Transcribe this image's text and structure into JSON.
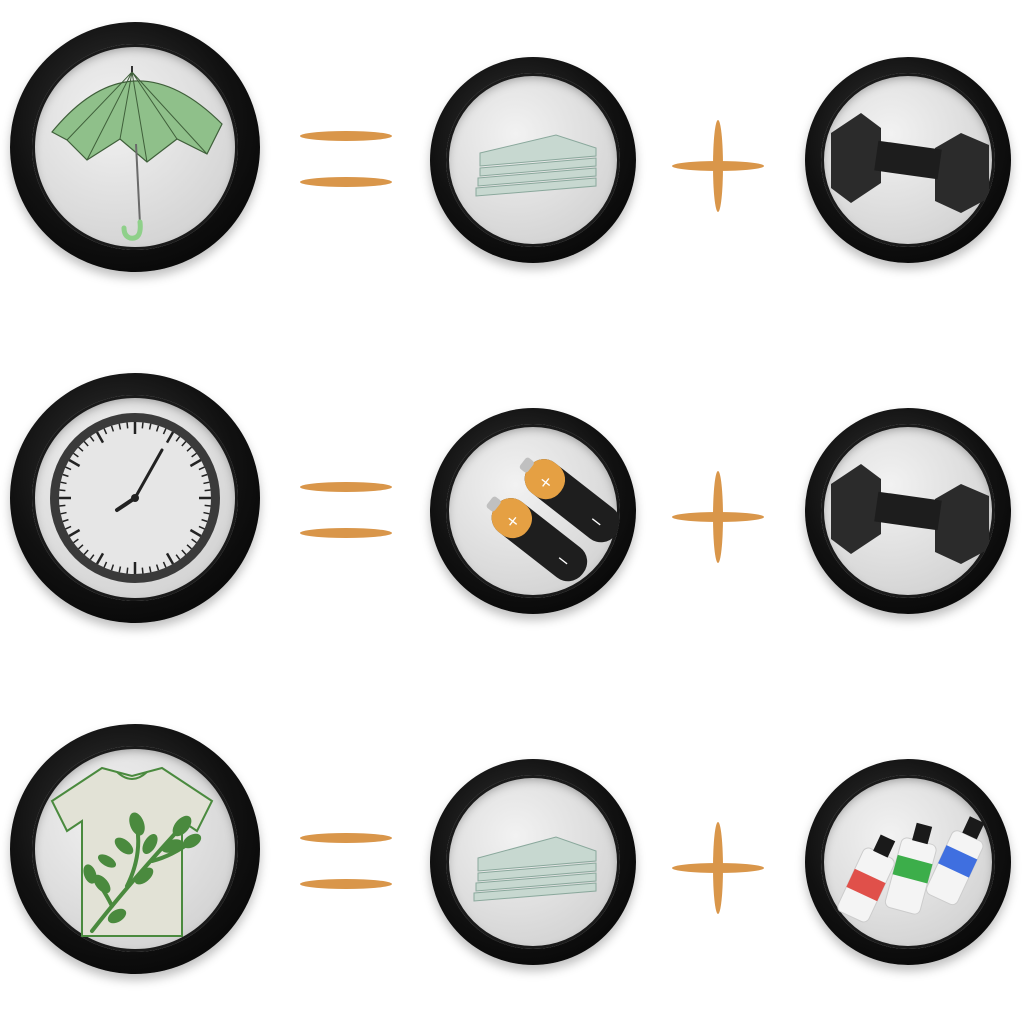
{
  "rows": [
    {
      "left": {
        "icon": "umbrella-icon"
      },
      "operator1": "equals-sign",
      "middle": {
        "icon": "paper-stack-icon"
      },
      "operator2": "plus-sign",
      "right": {
        "icon": "dumbbell-icon"
      }
    },
    {
      "left": {
        "icon": "clock-icon"
      },
      "operator1": "equals-sign",
      "middle": {
        "icon": "batteries-icon"
      },
      "operator2": "plus-sign",
      "right": {
        "icon": "dumbbell-icon"
      }
    },
    {
      "left": {
        "icon": "leaf-tshirt-icon"
      },
      "operator1": "equals-sign",
      "middle": {
        "icon": "paper-stack-icon"
      },
      "operator2": "plus-sign",
      "right": {
        "icon": "paint-tubes-icon"
      }
    }
  ],
  "colors": {
    "operator": "#d9964a",
    "ring": "#111111",
    "inner": "#dcdcdc",
    "umbrella": "#8fc08a",
    "shirt_leaves": "#4a8a3e",
    "battery_gold": "#e5a043",
    "paint_red": "#e0504a",
    "paint_green": "#3cae4a",
    "paint_blue": "#3f6fe0"
  }
}
